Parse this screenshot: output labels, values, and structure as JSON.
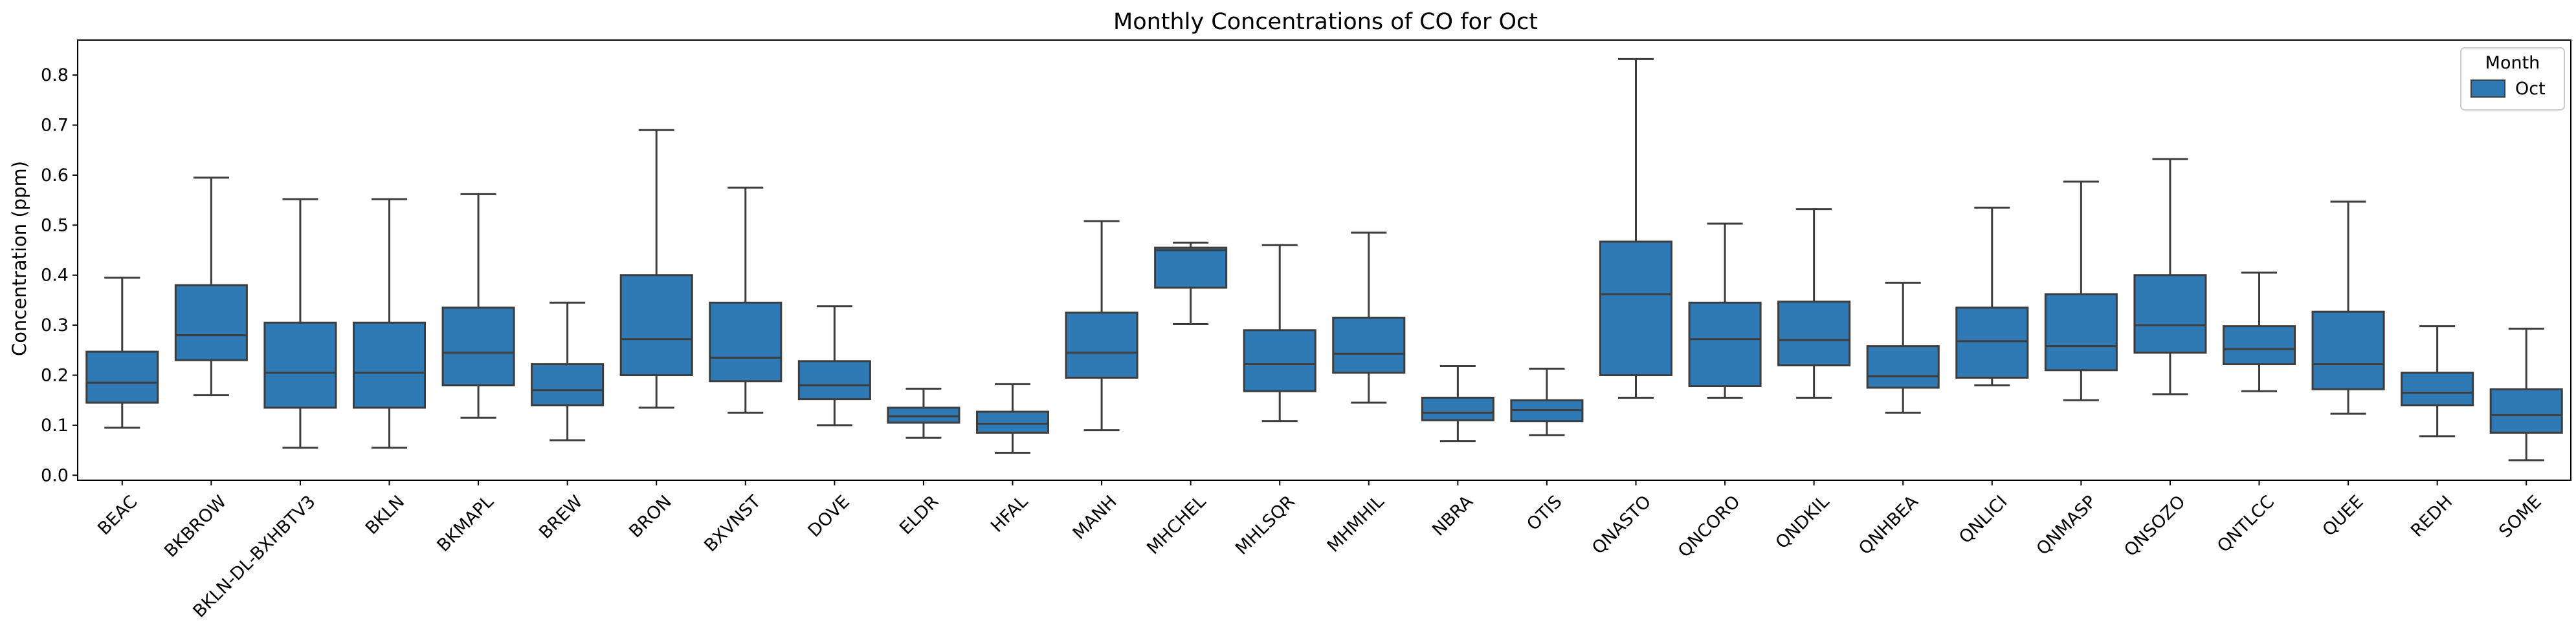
{
  "chart_data": {
    "type": "box",
    "title": "Monthly Concentrations of CO for Oct",
    "xlabel": "",
    "ylabel": "Concentration (ppm)",
    "ylim": [
      -0.01,
      0.87
    ],
    "yticks": [
      "0.0",
      "0.1",
      "0.2",
      "0.3",
      "0.4",
      "0.5",
      "0.6",
      "0.7",
      "0.8"
    ],
    "grid": false,
    "box_color": "#2f79b5",
    "line_color": "#3d3d3d",
    "legend": {
      "title": "Month",
      "placement": "top-right",
      "entries": [
        {
          "label": "Oct",
          "color": "#2f79b5"
        }
      ]
    },
    "categories": [
      "BEAC",
      "BKBROW",
      "BKLN-DL-BXHBTV3",
      "BKLN",
      "BKMAPL",
      "BREW",
      "BRON",
      "BXVNST",
      "DOVE",
      "ELDR",
      "HFAL",
      "MANH",
      "MHCHEL",
      "MHLSQR",
      "MHMHIL",
      "NBRA",
      "OTIS",
      "QNASTO",
      "QNCORO",
      "QNDKIL",
      "QNHBEA",
      "QNLICI",
      "QNMASP",
      "QNSOZO",
      "QNTLCC",
      "QUEE",
      "REDH",
      "SOME"
    ],
    "series": [
      {
        "name": "Oct",
        "boxes": [
          {
            "whisker_low": 0.095,
            "q1": 0.145,
            "median": 0.185,
            "q3": 0.247,
            "whisker_high": 0.395
          },
          {
            "whisker_low": 0.16,
            "q1": 0.23,
            "median": 0.28,
            "q3": 0.38,
            "whisker_high": 0.595
          },
          {
            "whisker_low": 0.055,
            "q1": 0.135,
            "median": 0.205,
            "q3": 0.305,
            "whisker_high": 0.552
          },
          {
            "whisker_low": 0.055,
            "q1": 0.135,
            "median": 0.205,
            "q3": 0.305,
            "whisker_high": 0.552
          },
          {
            "whisker_low": 0.115,
            "q1": 0.18,
            "median": 0.245,
            "q3": 0.335,
            "whisker_high": 0.562
          },
          {
            "whisker_low": 0.07,
            "q1": 0.14,
            "median": 0.17,
            "q3": 0.222,
            "whisker_high": 0.345
          },
          {
            "whisker_low": 0.135,
            "q1": 0.2,
            "median": 0.272,
            "q3": 0.4,
            "whisker_high": 0.69
          },
          {
            "whisker_low": 0.125,
            "q1": 0.188,
            "median": 0.235,
            "q3": 0.345,
            "whisker_high": 0.575
          },
          {
            "whisker_low": 0.1,
            "q1": 0.152,
            "median": 0.18,
            "q3": 0.228,
            "whisker_high": 0.338
          },
          {
            "whisker_low": 0.075,
            "q1": 0.105,
            "median": 0.118,
            "q3": 0.135,
            "whisker_high": 0.173
          },
          {
            "whisker_low": 0.045,
            "q1": 0.085,
            "median": 0.103,
            "q3": 0.127,
            "whisker_high": 0.182
          },
          {
            "whisker_low": 0.09,
            "q1": 0.195,
            "median": 0.245,
            "q3": 0.325,
            "whisker_high": 0.508
          },
          {
            "whisker_low": 0.302,
            "q1": 0.375,
            "median": 0.45,
            "q3": 0.455,
            "whisker_high": 0.465
          },
          {
            "whisker_low": 0.108,
            "q1": 0.168,
            "median": 0.222,
            "q3": 0.29,
            "whisker_high": 0.46
          },
          {
            "whisker_low": 0.145,
            "q1": 0.205,
            "median": 0.243,
            "q3": 0.315,
            "whisker_high": 0.485
          },
          {
            "whisker_low": 0.068,
            "q1": 0.11,
            "median": 0.125,
            "q3": 0.155,
            "whisker_high": 0.218
          },
          {
            "whisker_low": 0.08,
            "q1": 0.108,
            "median": 0.13,
            "q3": 0.15,
            "whisker_high": 0.213
          },
          {
            "whisker_low": 0.155,
            "q1": 0.2,
            "median": 0.362,
            "q3": 0.467,
            "whisker_high": 0.832
          },
          {
            "whisker_low": 0.155,
            "q1": 0.178,
            "median": 0.272,
            "q3": 0.345,
            "whisker_high": 0.503
          },
          {
            "whisker_low": 0.155,
            "q1": 0.22,
            "median": 0.27,
            "q3": 0.347,
            "whisker_high": 0.532
          },
          {
            "whisker_low": 0.125,
            "q1": 0.175,
            "median": 0.198,
            "q3": 0.258,
            "whisker_high": 0.385
          },
          {
            "whisker_low": 0.18,
            "q1": 0.195,
            "median": 0.268,
            "q3": 0.335,
            "whisker_high": 0.535
          },
          {
            "whisker_low": 0.15,
            "q1": 0.21,
            "median": 0.258,
            "q3": 0.362,
            "whisker_high": 0.587
          },
          {
            "whisker_low": 0.162,
            "q1": 0.245,
            "median": 0.3,
            "q3": 0.4,
            "whisker_high": 0.632
          },
          {
            "whisker_low": 0.168,
            "q1": 0.222,
            "median": 0.252,
            "q3": 0.298,
            "whisker_high": 0.405
          },
          {
            "whisker_low": 0.123,
            "q1": 0.172,
            "median": 0.222,
            "q3": 0.327,
            "whisker_high": 0.547
          },
          {
            "whisker_low": 0.078,
            "q1": 0.14,
            "median": 0.165,
            "q3": 0.205,
            "whisker_high": 0.298
          },
          {
            "whisker_low": 0.03,
            "q1": 0.085,
            "median": 0.12,
            "q3": 0.172,
            "whisker_high": 0.293
          }
        ]
      }
    ]
  }
}
